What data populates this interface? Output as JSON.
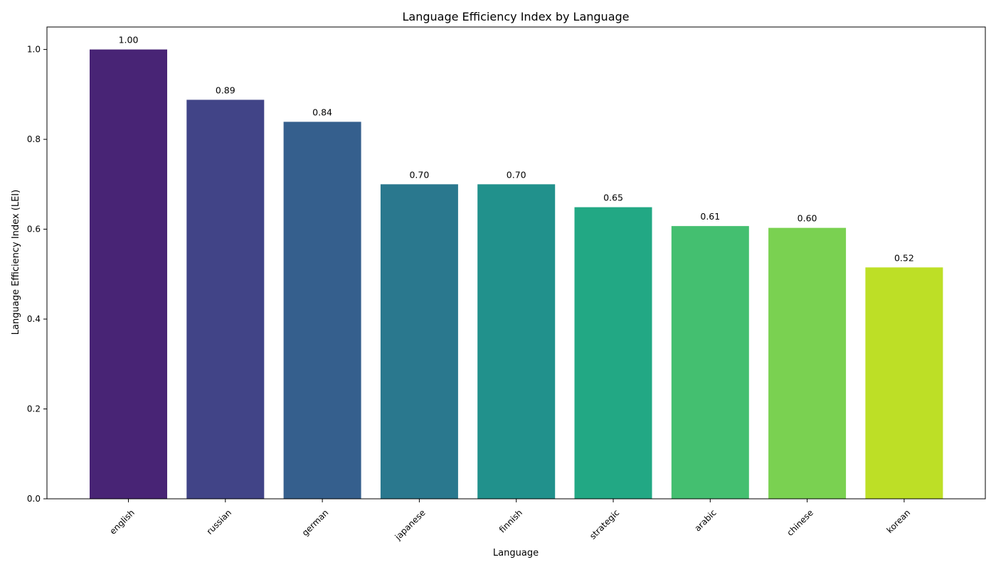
{
  "chart_data": {
    "type": "bar",
    "title": "Language Efficiency Index by Language",
    "xlabel": "Language",
    "ylabel": "Language Efficiency Index (LEI)",
    "categories": [
      "english",
      "russian",
      "german",
      "japanese",
      "finnish",
      "strategic",
      "arabic",
      "chinese",
      "korean"
    ],
    "values": [
      1.0,
      0.888,
      0.839,
      0.7,
      0.7,
      0.649,
      0.607,
      0.603,
      0.515
    ],
    "value_labels": [
      "1.00",
      "0.89",
      "0.84",
      "0.70",
      "0.70",
      "0.65",
      "0.61",
      "0.60",
      "0.52"
    ],
    "colors": [
      "#482475",
      "#414487",
      "#355f8d",
      "#2a788e",
      "#21918c",
      "#22a884",
      "#44bf70",
      "#7ad151",
      "#bddf26"
    ],
    "ylim": [
      0,
      1.05
    ],
    "yticks": [
      0.0,
      0.2,
      0.4,
      0.6,
      0.8,
      1.0
    ],
    "ytick_labels": [
      "0.0",
      "0.2",
      "0.4",
      "0.6",
      "0.8",
      "1.0"
    ],
    "xtick_rotation": 45,
    "grid": false,
    "legend": "none"
  }
}
